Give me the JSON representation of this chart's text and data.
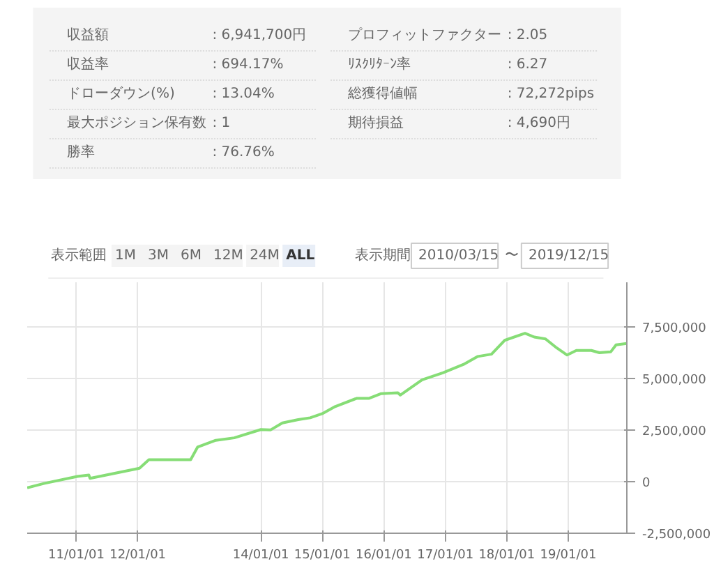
{
  "chart_data": [
    {
      "type": "other",
      "categories": [
        "収益額",
        "収益率",
        "ドローダウン(%)",
        "最大ポジション保有数",
        "勝率",
        "プロフィットファクター",
        "ﾘｽｸﾘﾀｰﾝ率",
        "総獲得値幅",
        "期待損益"
      ],
      "value_labels": [
        ":  6,941,700円",
        ":  694.17%",
        ":  13.04%",
        ":  1",
        ":  76.76%",
        ":  2.05",
        ":  6.27",
        ":  72,272pips",
        ":  4,690円"
      ]
    },
    {
      "type": "line",
      "annotations": [
        "表示範囲",
        "1M",
        "3M",
        "6M",
        "12M",
        "24M",
        "ALL",
        "表示期間",
        "2010/03/15",
        "〜",
        "2019/12/15"
      ],
      "x": [
        "2010-03-15",
        "2010-06-22",
        "2011-01-07",
        "2011-03-16",
        "2011-03-23",
        "2012-01-11",
        "2012-03-07",
        "2012-11-10",
        "2012-12-21",
        "2013-04-08",
        "2013-07-27",
        "2014-01-01",
        "2014-02-27",
        "2014-05-09",
        "2014-08-11",
        "2014-10-21",
        "2015-01-01",
        "2015-03-18",
        "2015-07-23",
        "2015-10-04",
        "2015-12-17",
        "2016-03-25",
        "2016-04-08",
        "2016-08-16",
        "2016-12-17",
        "2017-04-25",
        "2017-07-13",
        "2017-10-02",
        "2017-12-19",
        "2018-04-19",
        "2018-06-13",
        "2018-08-19",
        "2018-10-25",
        "2018-12-25",
        "2019-02-18",
        "2019-05-18",
        "2019-07-05",
        "2019-09-10",
        "2019-10-12",
        "2019-12-15"
      ],
      "series": [
        {
          "color": "#86dd76",
          "values": [
            -300000,
            -90000,
            250000,
            320000,
            160000,
            650000,
            1060000,
            1060000,
            1670000,
            2000000,
            2120000,
            2520000,
            2500000,
            2840000,
            3000000,
            3090000,
            3290000,
            3630000,
            4030000,
            4030000,
            4260000,
            4300000,
            4190000,
            4930000,
            5270000,
            5700000,
            6060000,
            6170000,
            6840000,
            7180000,
            7000000,
            6910000,
            6470000,
            6130000,
            6350000,
            6350000,
            6240000,
            6280000,
            6620000,
            6690000
          ]
        }
      ],
      "xlim": [
        "2010-03-15",
        "2019-12-15"
      ],
      "xticks": [
        {
          "value": "2011-01-01",
          "label": "11/01/01"
        },
        {
          "value": "2012-01-01",
          "label": "12/01/01"
        },
        {
          "value": "2014-01-01",
          "label": "14/01/01"
        },
        {
          "value": "2015-01-01",
          "label": "15/01/01"
        },
        {
          "value": "2016-01-01",
          "label": "16/01/01"
        },
        {
          "value": "2017-01-01",
          "label": "17/01/01"
        },
        {
          "value": "2018-01-01",
          "label": "18/01/01"
        },
        {
          "value": "2019-01-01",
          "label": "19/01/01"
        }
      ],
      "ylim": [
        -2500000,
        9650000
      ],
      "yticks": [
        {
          "value": -2500000,
          "label": "-2,500,000"
        },
        {
          "value": 0,
          "label": "0"
        },
        {
          "value": 2500000,
          "label": "2,500,000"
        },
        {
          "value": 5000000,
          "label": "5,000,000"
        },
        {
          "value": 7500000,
          "label": "7,500,000"
        }
      ],
      "grid": true,
      "marker": "none",
      "line_style": "solid"
    }
  ]
}
